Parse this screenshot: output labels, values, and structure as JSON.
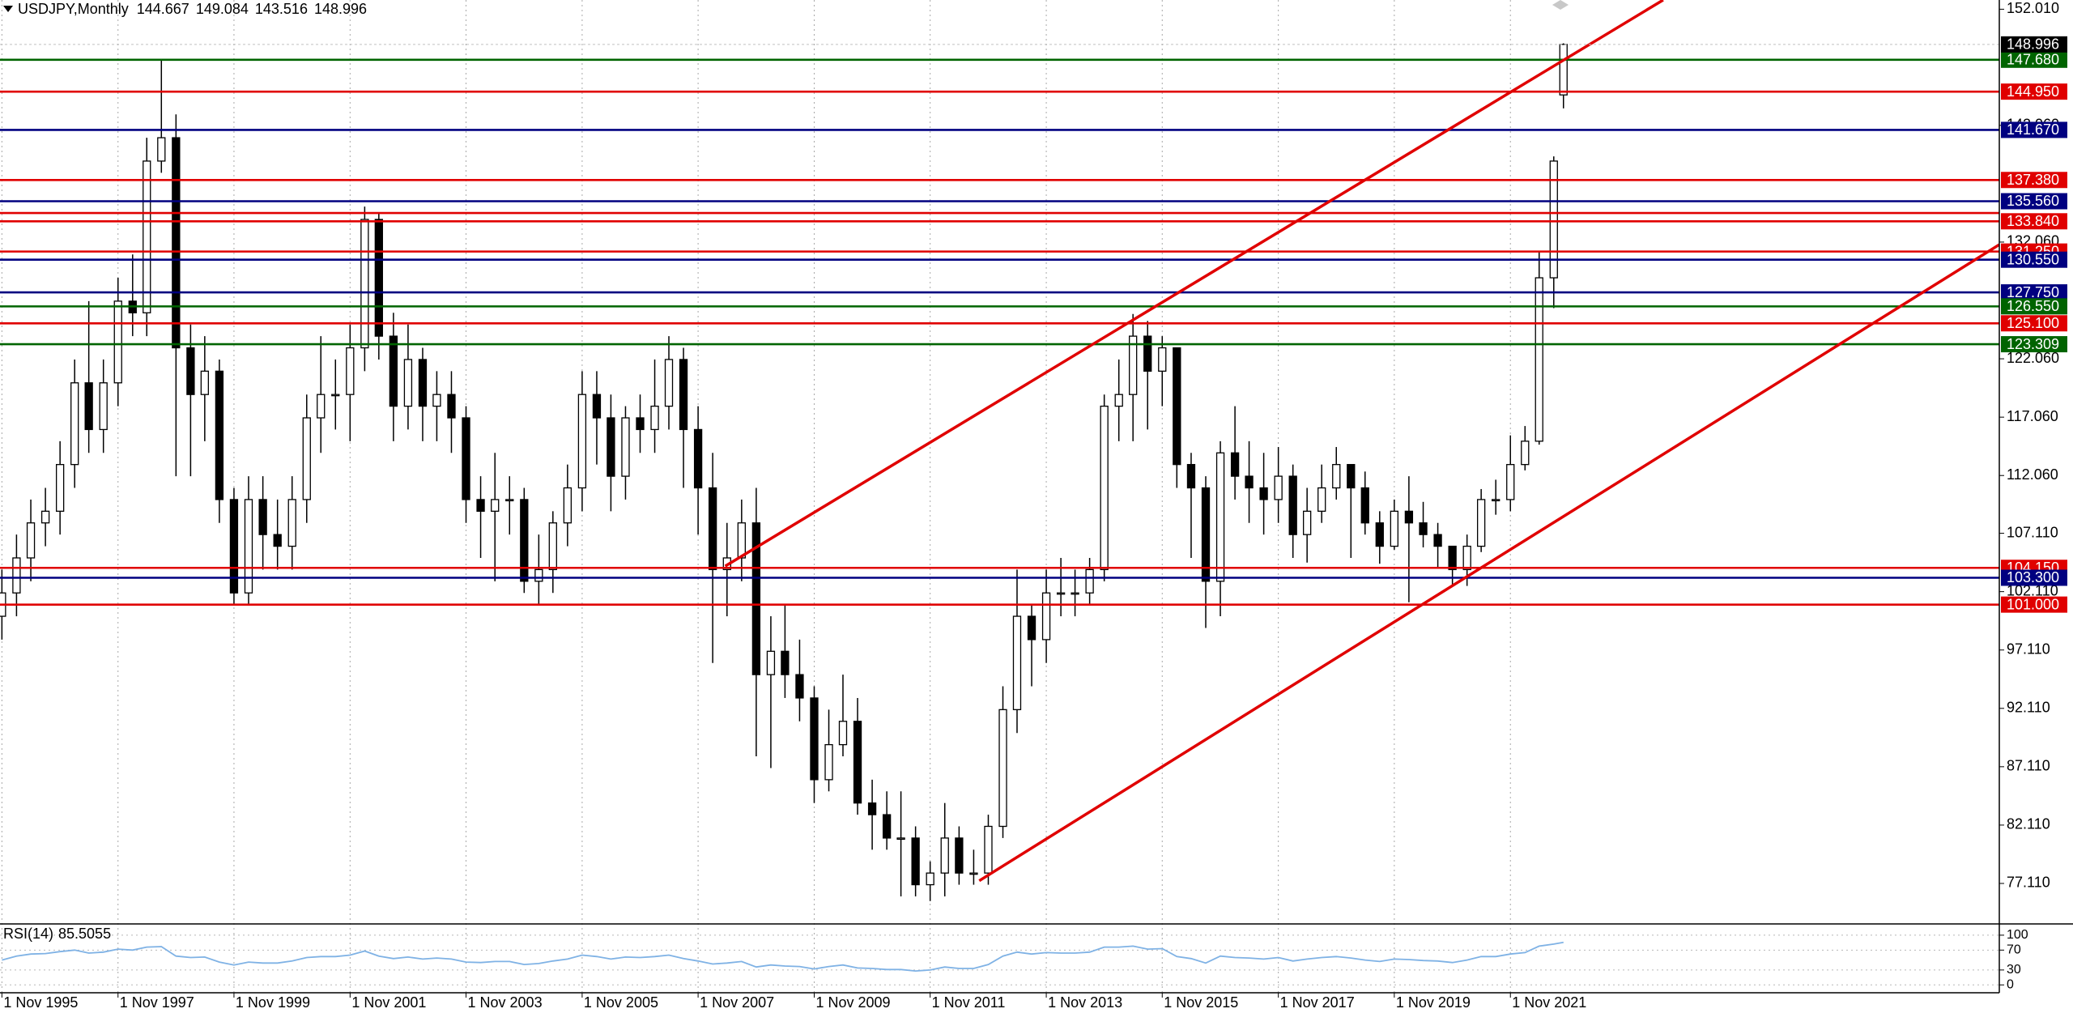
{
  "chart_data": {
    "type": "candlestick",
    "title": "USDJPY,Monthly",
    "x": [
      "1995-11-01",
      "1996-02-01",
      "1996-05-01",
      "1996-08-01",
      "1996-11-01",
      "1997-02-01",
      "1997-05-01",
      "1997-08-01",
      "1997-11-01",
      "1998-02-01",
      "1998-05-01",
      "1998-08-01",
      "1998-11-01",
      "1999-02-01",
      "1999-05-01",
      "1999-08-01",
      "1999-11-01",
      "2000-02-01",
      "2000-05-01",
      "2000-08-01",
      "2000-11-01",
      "2001-02-01",
      "2001-05-01",
      "2001-08-01",
      "2001-11-01",
      "2002-02-01",
      "2002-05-01",
      "2002-08-01",
      "2002-11-01",
      "2003-02-01",
      "2003-05-01",
      "2003-08-01",
      "2003-11-01",
      "2004-02-01",
      "2004-05-01",
      "2004-08-01",
      "2004-11-01",
      "2005-02-01",
      "2005-05-01",
      "2005-08-01",
      "2005-11-01",
      "2006-02-01",
      "2006-05-01",
      "2006-08-01",
      "2006-11-01",
      "2007-02-01",
      "2007-05-01",
      "2007-08-01",
      "2007-11-01",
      "2008-02-01",
      "2008-05-01",
      "2008-08-01",
      "2008-11-01",
      "2009-02-01",
      "2009-05-01",
      "2009-08-01",
      "2009-11-01",
      "2010-02-01",
      "2010-05-01",
      "2010-08-01",
      "2010-11-01",
      "2011-02-01",
      "2011-05-01",
      "2011-08-01",
      "2011-11-01",
      "2012-02-01",
      "2012-05-01",
      "2012-08-01",
      "2012-11-01",
      "2013-02-01",
      "2013-05-01",
      "2013-08-01",
      "2013-11-01",
      "2014-02-01",
      "2014-05-01",
      "2014-08-01",
      "2014-11-01",
      "2015-02-01",
      "2015-05-01",
      "2015-08-01",
      "2015-11-01",
      "2016-02-01",
      "2016-05-01",
      "2016-08-01",
      "2016-11-01",
      "2017-02-01",
      "2017-05-01",
      "2017-08-01",
      "2017-11-01",
      "2018-02-01",
      "2018-05-01",
      "2018-08-01",
      "2018-11-01",
      "2019-02-01",
      "2019-05-01",
      "2019-08-01",
      "2019-11-01",
      "2020-02-01",
      "2020-05-01",
      "2020-08-01",
      "2020-11-01",
      "2021-02-01",
      "2021-05-01",
      "2021-08-01",
      "2021-11-01",
      "2022-02-01",
      "2022-05-01",
      "2022-08-01",
      "2022-10-01"
    ],
    "open": [
      100,
      102,
      105,
      108,
      109,
      113,
      120,
      116,
      120,
      127,
      126,
      139,
      141,
      123,
      119,
      121,
      110,
      102,
      110,
      107,
      106,
      110,
      117,
      119,
      119,
      123,
      134,
      124,
      118,
      122,
      118,
      119,
      117,
      110,
      109,
      110,
      110,
      103,
      104,
      108,
      111,
      119,
      117,
      112,
      117,
      116,
      118,
      122,
      116,
      111,
      104,
      105,
      108,
      95,
      97,
      95,
      93,
      86,
      89,
      91,
      84,
      83,
      81,
      81,
      77,
      78,
      81,
      78,
      78,
      82,
      92,
      100,
      98,
      102,
      102,
      102,
      104,
      118,
      119,
      124,
      121,
      123,
      113,
      111,
      103,
      114,
      112,
      111,
      110,
      112,
      107,
      109,
      111,
      113,
      111,
      108,
      106,
      109,
      108,
      107,
      106,
      104,
      106,
      110,
      110,
      113,
      115,
      129,
      144.667
    ],
    "high": [
      104,
      107,
      110,
      111,
      115,
      122,
      127,
      122,
      129,
      131,
      141,
      147.6,
      143,
      125,
      124,
      122,
      111,
      112,
      112,
      110,
      112,
      119,
      124,
      122,
      125,
      135.1,
      134.5,
      126,
      125,
      123,
      121,
      121,
      118,
      112,
      114,
      112,
      111,
      107,
      109,
      113,
      121,
      121,
      119,
      118,
      119,
      122,
      124,
      123,
      118,
      114,
      108,
      110,
      111,
      100,
      101,
      98,
      94,
      92,
      95,
      93,
      86,
      85,
      85,
      82,
      79,
      84,
      82,
      80,
      83,
      94,
      104,
      101,
      104,
      105,
      104,
      105,
      119,
      122,
      125.9,
      125.3,
      124,
      123,
      114,
      112,
      115,
      118,
      115,
      114,
      114.5,
      113,
      111,
      113,
      114.5,
      113,
      112.4,
      109,
      110,
      112,
      109.8,
      108,
      106,
      107,
      110.9,
      111.7,
      115.5,
      116.3,
      131.3,
      139.4,
      149.084
    ],
    "low": [
      98,
      100,
      103,
      106,
      107,
      111,
      114,
      114,
      118,
      124,
      124,
      138,
      112,
      112,
      115,
      108,
      101,
      101,
      104,
      104,
      104,
      108,
      114,
      116,
      115,
      121,
      122,
      115,
      116,
      115,
      115,
      114,
      108,
      105,
      103,
      107,
      102,
      101,
      102,
      106,
      109,
      113,
      109,
      110,
      114,
      114,
      116,
      111,
      107,
      96,
      100,
      103,
      88,
      87,
      93,
      91,
      84,
      85,
      88,
      83,
      80,
      80,
      76,
      76,
      75.6,
      76,
      77,
      77,
      77,
      81,
      90,
      94,
      96,
      100,
      100,
      101,
      103,
      115,
      115,
      116,
      118,
      111,
      105,
      99,
      100,
      110,
      108,
      107,
      108,
      105,
      104.6,
      108,
      110,
      105,
      107,
      104.5,
      105.7,
      101.2,
      105.9,
      104.2,
      102.6,
      102.6,
      105.5,
      108.7,
      109,
      112.5,
      114.7,
      126.4,
      143.516
    ],
    "close": [
      102,
      105,
      108,
      109,
      113,
      120,
      116,
      120,
      127,
      126,
      139,
      141,
      123,
      119,
      121,
      110,
      102,
      110,
      107,
      106,
      110,
      117,
      119,
      119,
      123,
      134,
      124,
      118,
      122,
      118,
      119,
      117,
      110,
      109,
      110,
      110,
      103,
      104,
      108,
      111,
      119,
      117,
      112,
      117,
      116,
      118,
      122,
      116,
      111,
      104,
      105,
      108,
      95,
      97,
      95,
      93,
      86,
      89,
      91,
      84,
      83,
      81,
      81,
      77,
      78,
      81,
      78,
      78,
      82,
      92,
      100,
      98,
      102,
      102,
      102,
      104,
      118,
      119,
      124,
      121,
      123,
      113,
      111,
      103,
      114,
      112,
      111,
      110,
      112,
      107,
      109,
      111,
      113,
      111,
      108,
      106,
      109,
      108,
      107,
      106,
      104,
      106,
      110,
      110,
      113,
      115,
      129,
      139,
      148.996
    ],
    "up_color": "#ffffff",
    "down_color": "#000000",
    "current_price_color": "#000000",
    "xlim": [
      "1995-10-20",
      "2030-04-06"
    ],
    "xticks": [
      {
        "value": "1995-11-01",
        "label": "1 Nov 1995"
      },
      {
        "value": "1997-11-01",
        "label": "1 Nov 1997"
      },
      {
        "value": "1999-11-01",
        "label": "1 Nov 1999"
      },
      {
        "value": "2001-11-01",
        "label": "1 Nov 2001"
      },
      {
        "value": "2003-11-01",
        "label": "1 Nov 2003"
      },
      {
        "value": "2005-11-01",
        "label": "1 Nov 2005"
      },
      {
        "value": "2007-11-01",
        "label": "1 Nov 2007"
      },
      {
        "value": "2009-11-01",
        "label": "1 Nov 2009"
      },
      {
        "value": "2011-11-01",
        "label": "1 Nov 2011"
      },
      {
        "value": "2013-11-01",
        "label": "1 Nov 2013"
      },
      {
        "value": "2015-11-01",
        "label": "1 Nov 2015"
      },
      {
        "value": "2017-11-01",
        "label": "1 Nov 2017"
      },
      {
        "value": "2019-11-01",
        "label": "1 Nov 2019"
      },
      {
        "value": "2021-11-01",
        "label": "1 Nov 2021"
      }
    ],
    "ylim": [
      73.71,
      152.8
    ],
    "yticks": [
      {
        "value": 152.01,
        "label": "152.010"
      },
      {
        "value": 142.06,
        "label": "142.060"
      },
      {
        "value": 132.06,
        "label": "132.060"
      },
      {
        "value": 122.06,
        "label": "122.060"
      },
      {
        "value": 117.06,
        "label": "117.060"
      },
      {
        "value": 112.06,
        "label": "112.060"
      },
      {
        "value": 107.11,
        "label": "107.110"
      },
      {
        "value": 102.11,
        "label": "102.110"
      },
      {
        "value": 97.11,
        "label": "97.110"
      },
      {
        "value": 92.11,
        "label": "92.110"
      },
      {
        "value": 87.11,
        "label": "87.110"
      },
      {
        "value": 82.11,
        "label": "82.110"
      },
      {
        "value": 77.11,
        "label": "77.110"
      }
    ],
    "levels": [
      {
        "value": 131.25,
        "label": "131.250",
        "color": "#e00000"
      },
      {
        "value": 134.55,
        "color": "#e00000"
      },
      {
        "value": 147.68,
        "label": "147.680",
        "color": "#006400"
      },
      {
        "value": 144.95,
        "label": "144.950",
        "color": "#e00000"
      },
      {
        "value": 141.67,
        "label": "141.670",
        "color": "#000080"
      },
      {
        "value": 137.38,
        "label": "137.380",
        "color": "#e00000"
      },
      {
        "value": 135.56,
        "label": "135.560",
        "color": "#000080"
      },
      {
        "value": 133.84,
        "label": "133.840",
        "color": "#e00000"
      },
      {
        "value": 130.55,
        "label": "130.550",
        "color": "#000080"
      },
      {
        "value": 127.75,
        "label": "127.750",
        "color": "#000080"
      },
      {
        "value": 126.55,
        "label": "126.550",
        "color": "#006400"
      },
      {
        "value": 125.1,
        "label": "125.100",
        "color": "#e00000"
      },
      {
        "value": 123.309,
        "label": "123.309",
        "color": "#006400"
      },
      {
        "value": 104.15,
        "label": "104.150",
        "color": "#e00000"
      },
      {
        "value": 103.3,
        "label": "103.300",
        "color": "#000080"
      },
      {
        "value": 101,
        "label": "101.000",
        "color": "#e00000"
      }
    ],
    "trendlines": [
      {
        "x": [
          "2008-04-20",
          "2024-06-20"
        ],
        "y": [
          104.3,
          152.8
        ],
        "color": "#e00000"
      },
      {
        "x": [
          "2012-09-05",
          "2030-04-06"
        ],
        "y": [
          77.34,
          131.84
        ],
        "color": "#e00000"
      }
    ],
    "rsi": {
      "name": "RSI(14)",
      "color": "#7fb2e5",
      "ylim": [
        -15.8,
        121
      ],
      "yticks": [
        0,
        30,
        70,
        100
      ],
      "values": [
        50,
        58,
        62,
        63,
        67,
        70,
        64,
        66,
        72,
        70,
        76,
        77,
        58,
        55,
        56,
        46,
        40,
        46,
        44,
        44,
        48,
        55,
        57,
        57,
        60,
        68,
        58,
        53,
        56,
        52,
        54,
        52,
        46,
        45,
        47,
        47,
        41,
        43,
        48,
        52,
        60,
        57,
        52,
        56,
        55,
        57,
        60,
        53,
        48,
        42,
        44,
        47,
        36,
        40,
        38,
        37,
        32,
        37,
        40,
        34,
        33,
        31,
        31,
        28,
        30,
        36,
        33,
        33,
        41,
        58,
        66,
        62,
        65,
        64,
        64,
        66,
        76,
        76,
        78,
        72,
        73,
        57,
        53,
        44,
        58,
        55,
        54,
        52,
        55,
        48,
        52,
        55,
        57,
        54,
        50,
        47,
        52,
        51,
        49,
        48,
        45,
        50,
        57,
        57,
        62,
        65,
        78,
        82,
        85.5055
      ]
    }
  }
}
